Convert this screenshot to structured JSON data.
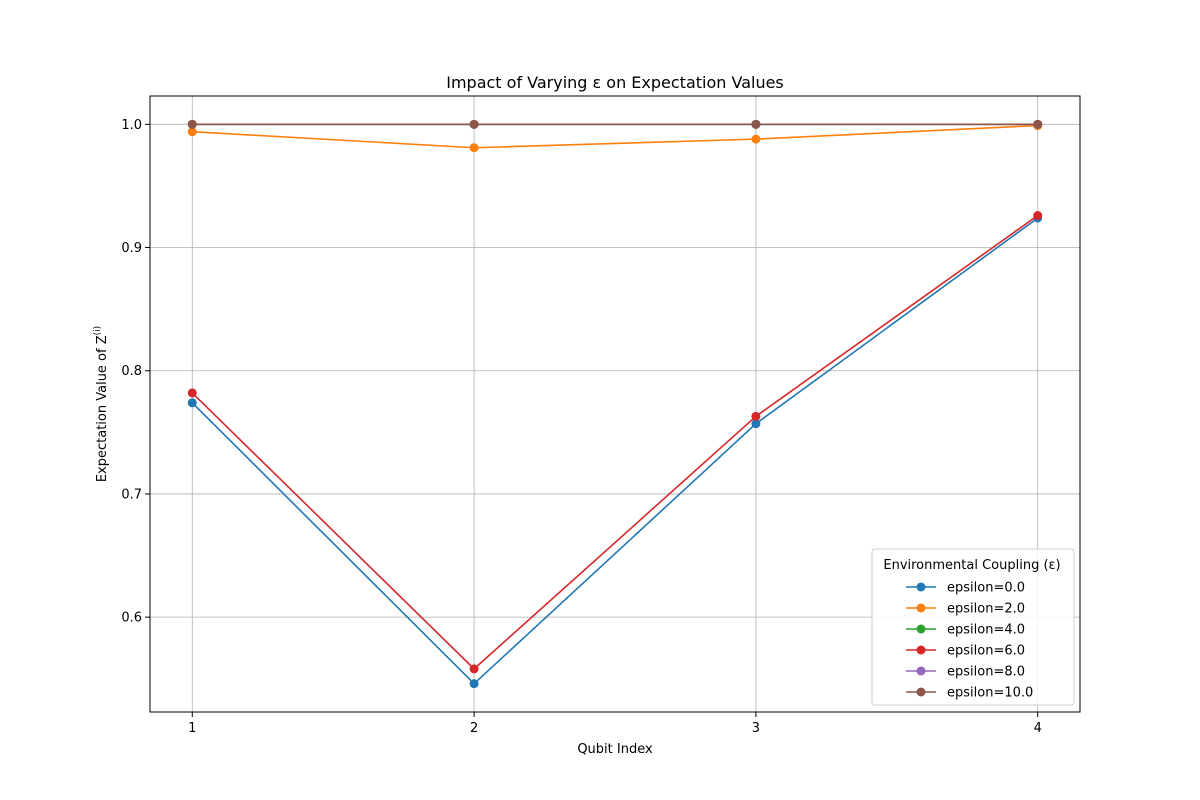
{
  "chart_data": {
    "type": "line",
    "title": "Impact of Varying ε on Expectation Values",
    "xlabel": "Qubit Index",
    "ylabel": "Expectation Value of Z",
    "ylabel_superscript": "(i)",
    "x": [
      1,
      2,
      3,
      4
    ],
    "xticks": [
      "1",
      "2",
      "3",
      "4"
    ],
    "yticks": [
      "0.6",
      "0.7",
      "0.8",
      "0.9",
      "1.0"
    ],
    "ytick_values": [
      0.6,
      0.7,
      0.8,
      0.9,
      1.0
    ],
    "xlim": [
      0.85,
      4.15
    ],
    "ylim": [
      0.523,
      1.023
    ],
    "grid": true,
    "legend": {
      "title": "Environmental Coupling (ε)",
      "placement": "lower-right"
    },
    "series": [
      {
        "name": "epsilon=0.0",
        "color": "#1f77b4",
        "values": [
          0.774,
          0.546,
          0.757,
          0.924
        ]
      },
      {
        "name": "epsilon=2.0",
        "color": "#ff7f0e",
        "values": [
          0.994,
          0.981,
          0.988,
          0.999
        ]
      },
      {
        "name": "epsilon=4.0",
        "color": "#2ca02c",
        "values": [
          1.0,
          1.0,
          1.0,
          1.0
        ]
      },
      {
        "name": "epsilon=6.0",
        "color": "#d62728",
        "values": [
          0.782,
          0.558,
          0.763,
          0.926
        ]
      },
      {
        "name": "epsilon=8.0",
        "color": "#9467bd",
        "values": [
          1.0,
          1.0,
          1.0,
          1.0
        ]
      },
      {
        "name": "epsilon=10.0",
        "color": "#8c564b",
        "values": [
          1.0,
          1.0,
          1.0,
          1.0
        ]
      }
    ]
  }
}
